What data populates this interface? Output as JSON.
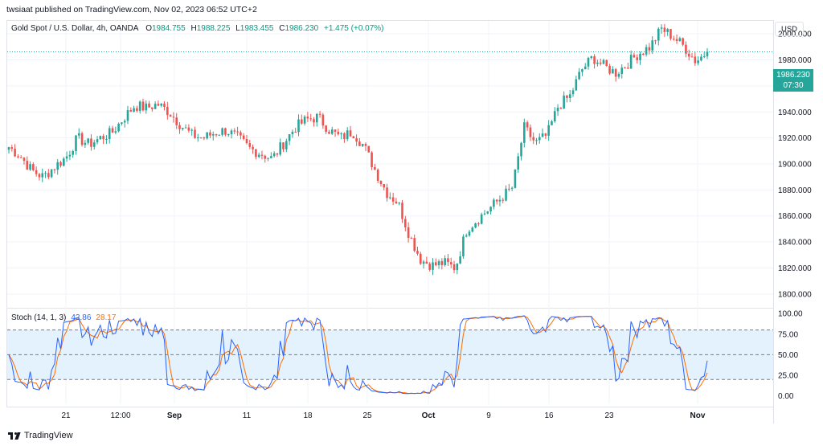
{
  "header": {
    "published": "twsiaat published on TradingView.com, Nov 02, 2023 06:52 UTC+2"
  },
  "legend": {
    "symbol": "Gold Spot / U.S. Dollar, 4h, OANDA",
    "o_label": "O",
    "o_value": "1984.755",
    "h_label": "H",
    "h_value": "1988.225",
    "l_label": "L",
    "l_value": "1983.455",
    "c_label": "C",
    "c_value": "1986.230",
    "change": "+1.475 (+0.07%)"
  },
  "currency": "USD",
  "last_price": {
    "price": "1986.230",
    "countdown": "07:30"
  },
  "stoch": {
    "label": "Stoch (14, 1, 3)",
    "k": "42.86",
    "d": "28.17"
  },
  "footer": {
    "brand": "TradingView"
  },
  "colors": {
    "up": "#26a69a",
    "down": "#ef5350",
    "k": "#2962ff",
    "d": "#ff6d00",
    "band": "#e3f2fd"
  },
  "chart_data": [
    {
      "type": "candlestick",
      "title": "Gold Spot / U.S. Dollar, 4h, OANDA",
      "ylim": [
        1790,
        2010
      ],
      "y_ticks": [
        "1800.000",
        "1820.000",
        "1840.000",
        "1860.000",
        "1880.000",
        "1900.000",
        "1920.000",
        "1940.000",
        "1960.000",
        "1980.000",
        "2000.000"
      ],
      "x_ticks": [
        "21",
        "12:00",
        "Sep",
        "11",
        "18",
        "25",
        "Oct",
        "9",
        "16",
        "23",
        "Nov"
      ],
      "close_path": [
        [
          "Aug 17",
          1913
        ],
        [
          "Aug 18",
          1906
        ],
        [
          "Aug 19",
          1895
        ],
        [
          "Aug 21",
          1890
        ],
        [
          "Aug 22",
          1898
        ],
        [
          "Aug 23",
          1905
        ],
        [
          "Aug 24",
          1920
        ],
        [
          "Aug 25",
          1915
        ],
        [
          "Aug 26",
          1920
        ],
        [
          "Aug 28",
          1924
        ],
        [
          "Aug 29",
          1935
        ],
        [
          "Aug 30",
          1945
        ],
        [
          "Aug 31",
          1943
        ],
        [
          "Sep 1",
          1946
        ],
        [
          "Sep 2",
          1940
        ],
        [
          "Sep 4",
          1930
        ],
        [
          "Sep 5",
          1922
        ],
        [
          "Sep 6",
          1920
        ],
        [
          "Sep 7",
          1924
        ],
        [
          "Sep 8",
          1926
        ],
        [
          "Sep 11",
          1920
        ],
        [
          "Sep 12",
          1912
        ],
        [
          "Sep 13",
          1908
        ],
        [
          "Sep 14",
          1904
        ],
        [
          "Sep 15",
          1916
        ],
        [
          "Sep 18",
          1928
        ],
        [
          "Sep 19",
          1934
        ],
        [
          "Sep 20",
          1936
        ],
        [
          "Sep 21",
          1926
        ],
        [
          "Sep 22",
          1920
        ],
        [
          "Sep 25",
          1925
        ],
        [
          "Sep 26",
          1914
        ],
        [
          "Sep 27",
          1895
        ],
        [
          "Sep 28",
          1878
        ],
        [
          "Sep 29",
          1870
        ],
        [
          "Oct 2",
          1845
        ],
        [
          "Oct 3",
          1826
        ],
        [
          "Oct 4",
          1822
        ],
        [
          "Oct 5",
          1824
        ],
        [
          "Oct 6",
          1820
        ],
        [
          "Oct 9",
          1850
        ],
        [
          "Oct 10",
          1858
        ],
        [
          "Oct 11",
          1866
        ],
        [
          "Oct 12",
          1874
        ],
        [
          "Oct 13",
          1882
        ],
        [
          "Oct 15",
          1928
        ],
        [
          "Oct 16",
          1916
        ],
        [
          "Oct 17",
          1922
        ],
        [
          "Oct 18",
          1945
        ],
        [
          "Oct 19",
          1952
        ],
        [
          "Oct 20",
          1972
        ],
        [
          "Oct 22",
          1982
        ],
        [
          "Oct 23",
          1975
        ],
        [
          "Oct 24",
          1970
        ],
        [
          "Oct 25",
          1977
        ],
        [
          "Oct 26",
          1985
        ],
        [
          "Oct 27",
          1990
        ],
        [
          "Oct 29",
          2004
        ],
        [
          "Oct 30",
          1998
        ],
        [
          "Oct 31",
          1990
        ],
        [
          "Nov 1",
          1979
        ],
        [
          "Nov 2",
          1986.23
        ]
      ]
    },
    {
      "type": "line",
      "title": "Stoch (14, 1, 3)",
      "ylim": [
        -10,
        105
      ],
      "y_ticks": [
        "0.00",
        "25.00",
        "50.00",
        "75.00",
        "100.00"
      ],
      "bands": [
        20,
        50,
        80
      ],
      "series": [
        {
          "name": "%K",
          "last": 42.86
        },
        {
          "name": "%D",
          "last": 28.17
        }
      ]
    }
  ]
}
